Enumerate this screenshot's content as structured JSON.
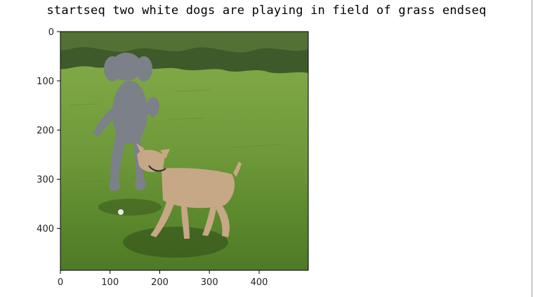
{
  "title": "startseq two white dogs are playing in field of grass endseq",
  "axes": {
    "x_ticks": [
      "0",
      "100",
      "200",
      "300",
      "400"
    ],
    "y_ticks": [
      "0",
      "100",
      "200",
      "300",
      "400"
    ],
    "x_range": [
      0,
      499
    ],
    "y_range": [
      0,
      485
    ]
  },
  "image": {
    "subject": "poodle and tan dog playing on grass",
    "colors": {
      "grass": "#6f9a3a",
      "grass_dark": "#45701f",
      "bushes": "#3e5a2a",
      "poodle": "#7c8088",
      "tan_dog": "#c6a886",
      "shadow": "#2f4d18"
    }
  }
}
